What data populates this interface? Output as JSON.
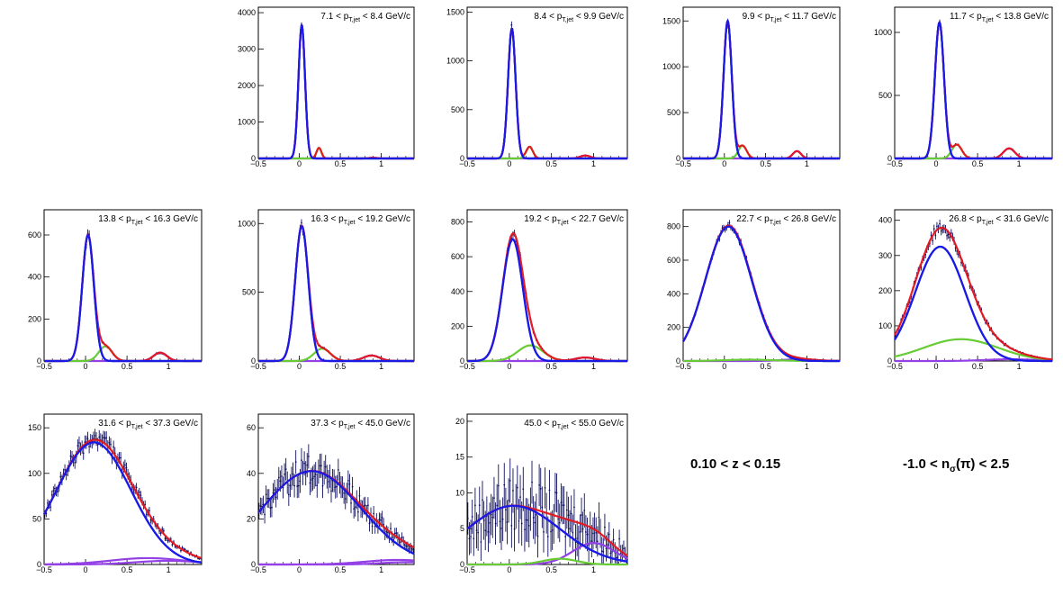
{
  "conditions": {
    "z_range": "0.10 < z < 0.15",
    "nsigma_range_pre": "-1.0 < n",
    "nsigma_sub": "σ",
    "nsigma_range_post": "(π) < 2.5"
  },
  "chart_data": [
    {
      "type": "line",
      "panel": 1,
      "title_pre": "7.1 < p",
      "title_sub": "T,jet",
      "title_post": " < 8.4 GeV/c",
      "xlim": [
        -0.5,
        1.4
      ],
      "ylim": [
        0,
        4150
      ],
      "xticks": [
        -0.5,
        0,
        0.5,
        1
      ],
      "xtick_labels": [
        "−0.5",
        "0",
        "0.5",
        "1"
      ],
      "yticks": [
        0,
        1000,
        2000,
        3000,
        4000
      ],
      "noise": 0.03,
      "components": [
        {
          "name": "pion",
          "color": "#1a1ae6",
          "amp": 3650,
          "mu": 0.03,
          "sigma": 0.04
        },
        {
          "name": "kaon",
          "color": "#66cc33",
          "amp": 290,
          "mu": 0.24,
          "sigma": 0.03
        },
        {
          "name": "proton",
          "color": "#9340e6",
          "amp": 20,
          "mu": 0.9,
          "sigma": 0.05
        }
      ]
    },
    {
      "type": "line",
      "panel": 2,
      "title_pre": "8.4 < p",
      "title_sub": "T,jet",
      "title_post": " < 9.9 GeV/c",
      "xlim": [
        -0.5,
        1.4
      ],
      "ylim": [
        0,
        1550
      ],
      "xticks": [
        -0.5,
        0,
        0.5,
        1
      ],
      "xtick_labels": [
        "−0.5",
        "0",
        "0.5",
        "1"
      ],
      "yticks": [
        0,
        500,
        1000,
        1500
      ],
      "noise": 0.05,
      "components": [
        {
          "name": "pion",
          "color": "#1a1ae6",
          "amp": 1330,
          "mu": 0.03,
          "sigma": 0.045
        },
        {
          "name": "kaon",
          "color": "#66cc33",
          "amp": 120,
          "mu": 0.24,
          "sigma": 0.04
        },
        {
          "name": "proton",
          "color": "#9340e6",
          "amp": 30,
          "mu": 0.9,
          "sigma": 0.06
        }
      ]
    },
    {
      "type": "line",
      "panel": 3,
      "title_pre": "9.9 < p",
      "title_sub": "T,jet",
      "title_post": " < 11.7 GeV/c",
      "xlim": [
        -0.5,
        1.4
      ],
      "ylim": [
        0,
        1650
      ],
      "xticks": [
        -0.5,
        0,
        0.5,
        1
      ],
      "xtick_labels": [
        "−0.5",
        "0",
        "0.5",
        "1"
      ],
      "yticks": [
        0,
        500,
        1000,
        1500
      ],
      "noise": 0.05,
      "components": [
        {
          "name": "pion",
          "color": "#1a1ae6",
          "amp": 1500,
          "mu": 0.04,
          "sigma": 0.05
        },
        {
          "name": "kaon",
          "color": "#66cc33",
          "amp": 140,
          "mu": 0.22,
          "sigma": 0.05
        },
        {
          "name": "proton",
          "color": "#9340e6",
          "amp": 80,
          "mu": 0.88,
          "sigma": 0.05
        }
      ]
    },
    {
      "type": "line",
      "panel": 4,
      "title_pre": "11.7 < p",
      "title_sub": "T,jet",
      "title_post": " < 13.8 GeV/c",
      "xlim": [
        -0.5,
        1.4
      ],
      "ylim": [
        0,
        1200
      ],
      "xticks": [
        -0.5,
        0,
        0.5,
        1
      ],
      "xtick_labels": [
        "−0.5",
        "0",
        "0.5",
        "1"
      ],
      "yticks": [
        0,
        500,
        1000
      ],
      "noise": 0.05,
      "components": [
        {
          "name": "pion",
          "color": "#1a1ae6",
          "amp": 1080,
          "mu": 0.04,
          "sigma": 0.055
        },
        {
          "name": "kaon",
          "color": "#66cc33",
          "amp": 110,
          "mu": 0.25,
          "sigma": 0.06
        },
        {
          "name": "proton",
          "color": "#9340e6",
          "amp": 80,
          "mu": 0.88,
          "sigma": 0.07
        }
      ]
    },
    {
      "type": "line",
      "panel": 5,
      "title_pre": "13.8 < p",
      "title_sub": "T,jet",
      "title_post": " < 16.3 GeV/c",
      "xlim": [
        -0.5,
        1.4
      ],
      "ylim": [
        0,
        720
      ],
      "xticks": [
        -0.5,
        0,
        0.5,
        1
      ],
      "xtick_labels": [
        "−0.5",
        "0",
        "0.5",
        "1"
      ],
      "yticks": [
        0,
        200,
        400,
        600
      ],
      "noise": 0.06,
      "components": [
        {
          "name": "pion",
          "color": "#1a1ae6",
          "amp": 600,
          "mu": 0.03,
          "sigma": 0.07
        },
        {
          "name": "kaon",
          "color": "#66cc33",
          "amp": 70,
          "mu": 0.24,
          "sigma": 0.08
        },
        {
          "name": "proton",
          "color": "#9340e6",
          "amp": 40,
          "mu": 0.9,
          "sigma": 0.08
        }
      ]
    },
    {
      "type": "line",
      "panel": 6,
      "title_pre": "16.3 < p",
      "title_sub": "T,jet",
      "title_post": " < 19.2 GeV/c",
      "xlim": [
        -0.5,
        1.4
      ],
      "ylim": [
        0,
        1100
      ],
      "xticks": [
        -0.5,
        0,
        0.5,
        1
      ],
      "xtick_labels": [
        "−0.5",
        "0",
        "0.5",
        "1"
      ],
      "yticks": [
        0,
        500,
        1000
      ],
      "noise": 0.05,
      "components": [
        {
          "name": "pion",
          "color": "#1a1ae6",
          "amp": 980,
          "mu": 0.03,
          "sigma": 0.08
        },
        {
          "name": "kaon",
          "color": "#66cc33",
          "amp": 90,
          "mu": 0.28,
          "sigma": 0.1
        },
        {
          "name": "proton",
          "color": "#9340e6",
          "amp": 40,
          "mu": 0.88,
          "sigma": 0.1
        }
      ]
    },
    {
      "type": "line",
      "panel": 7,
      "title_pre": "19.2 < p",
      "title_sub": "T,jet",
      "title_post": " < 22.7 GeV/c",
      "xlim": [
        -0.5,
        1.4
      ],
      "ylim": [
        0,
        870
      ],
      "xticks": [
        -0.5,
        0,
        0.5,
        1
      ],
      "xtick_labels": [
        "−0.5",
        "0",
        "0.5",
        "1"
      ],
      "yticks": [
        0,
        200,
        400,
        600,
        800
      ],
      "noise": 0.05,
      "components": [
        {
          "name": "pion",
          "color": "#1a1ae6",
          "amp": 700,
          "mu": 0.04,
          "sigma": 0.12
        },
        {
          "name": "kaon",
          "color": "#66cc33",
          "amp": 90,
          "mu": 0.25,
          "sigma": 0.15
        },
        {
          "name": "proton",
          "color": "#9340e6",
          "amp": 20,
          "mu": 0.9,
          "sigma": 0.12
        }
      ]
    },
    {
      "type": "line",
      "panel": 8,
      "title_pre": "22.7 < p",
      "title_sub": "T,jet",
      "title_post": " < 26.8 GeV/c",
      "xlim": [
        -0.5,
        1.4
      ],
      "ylim": [
        0,
        900
      ],
      "xticks": [
        -0.5,
        0,
        0.5,
        1
      ],
      "xtick_labels": [
        "−0.5",
        "0",
        "0.5",
        "1"
      ],
      "yticks": [
        0,
        200,
        400,
        600,
        800
      ],
      "noise": 0.04,
      "components": [
        {
          "name": "pion",
          "color": "#1a1ae6",
          "amp": 800,
          "mu": 0.05,
          "sigma": 0.28
        },
        {
          "name": "kaon",
          "color": "#66cc33",
          "amp": 8,
          "mu": 0.3,
          "sigma": 0.3
        },
        {
          "name": "proton",
          "color": "#9340e6",
          "amp": 10,
          "mu": 0.9,
          "sigma": 0.2
        }
      ]
    },
    {
      "type": "line",
      "panel": 9,
      "title_pre": "26.8 < p",
      "title_sub": "T,jet",
      "title_post": " < 31.6 GeV/c",
      "xlim": [
        -0.5,
        1.4
      ],
      "ylim": [
        0,
        430
      ],
      "xticks": [
        -0.5,
        0,
        0.5,
        1
      ],
      "xtick_labels": [
        "−0.5",
        "0",
        "0.5",
        "1"
      ],
      "yticks": [
        0,
        100,
        200,
        300,
        400
      ],
      "noise": 0.06,
      "components": [
        {
          "name": "pion",
          "color": "#1a1ae6",
          "amp": 325,
          "mu": 0.05,
          "sigma": 0.3
        },
        {
          "name": "kaon",
          "color": "#66cc33",
          "amp": 62,
          "mu": 0.3,
          "sigma": 0.45
        },
        {
          "name": "proton",
          "color": "#9340e6",
          "amp": 5,
          "mu": 0.9,
          "sigma": 0.3
        }
      ]
    },
    {
      "type": "line",
      "panel": 10,
      "title_pre": "31.6 < p",
      "title_sub": "T,jet",
      "title_post": " < 37.3 GeV/c",
      "xlim": [
        -0.5,
        1.4
      ],
      "ylim": [
        0,
        165
      ],
      "xticks": [
        -0.5,
        0,
        0.5,
        1
      ],
      "xtick_labels": [
        "−0.5",
        "0",
        "0.5",
        "1"
      ],
      "yticks": [
        0,
        50,
        100,
        150
      ],
      "noise": 0.1,
      "components": [
        {
          "name": "pion",
          "color": "#1a1ae6",
          "amp": 134,
          "mu": 0.1,
          "sigma": 0.45
        },
        {
          "name": "kaon",
          "color": "#9340e6",
          "amp": 7,
          "mu": 0.75,
          "sigma": 0.45
        },
        {
          "name": "proton",
          "color": "#9340e6",
          "amp": 4,
          "mu": 1.0,
          "sigma": 0.4
        }
      ]
    },
    {
      "type": "line",
      "panel": 11,
      "title_pre": "37.3 < p",
      "title_sub": "T,jet",
      "title_post": " < 45.0 GeV/c",
      "xlim": [
        -0.5,
        1.4
      ],
      "ylim": [
        0,
        66
      ],
      "xticks": [
        -0.5,
        0,
        0.5,
        1
      ],
      "xtick_labels": [
        "−0.5",
        "0",
        "0.5",
        "1"
      ],
      "yticks": [
        0,
        20,
        40,
        60
      ],
      "noise": 0.22,
      "components": [
        {
          "name": "pion",
          "color": "#1a1ae6",
          "amp": 41,
          "mu": 0.15,
          "sigma": 0.6
        },
        {
          "name": "kaon",
          "color": "#9340e6",
          "amp": 2,
          "mu": 1.2,
          "sigma": 0.4
        },
        {
          "name": "proton",
          "color": "#9340e6",
          "amp": 1,
          "mu": 1.3,
          "sigma": 0.3
        }
      ]
    },
    {
      "type": "line",
      "panel": 12,
      "title_pre": "45.0 < p",
      "title_sub": "T,jet",
      "title_post": " < 55.0 GeV/c",
      "xlim": [
        -0.5,
        1.4
      ],
      "ylim": [
        0,
        21
      ],
      "xticks": [
        -0.5,
        0,
        0.5,
        1
      ],
      "xtick_labels": [
        "−0.5",
        "0",
        "0.5",
        "1"
      ],
      "yticks": [
        0,
        5,
        10,
        15,
        20
      ],
      "noise": 0.55,
      "components": [
        {
          "name": "pion",
          "color": "#1a1ae6",
          "amp": 8.2,
          "mu": 0.05,
          "sigma": 0.55
        },
        {
          "name": "kaon",
          "color": "#66cc33",
          "amp": 0.8,
          "mu": 0.6,
          "sigma": 0.2
        },
        {
          "name": "proton",
          "color": "#9340e6",
          "amp": 3,
          "mu": 1.0,
          "sigma": 0.25
        }
      ]
    }
  ]
}
